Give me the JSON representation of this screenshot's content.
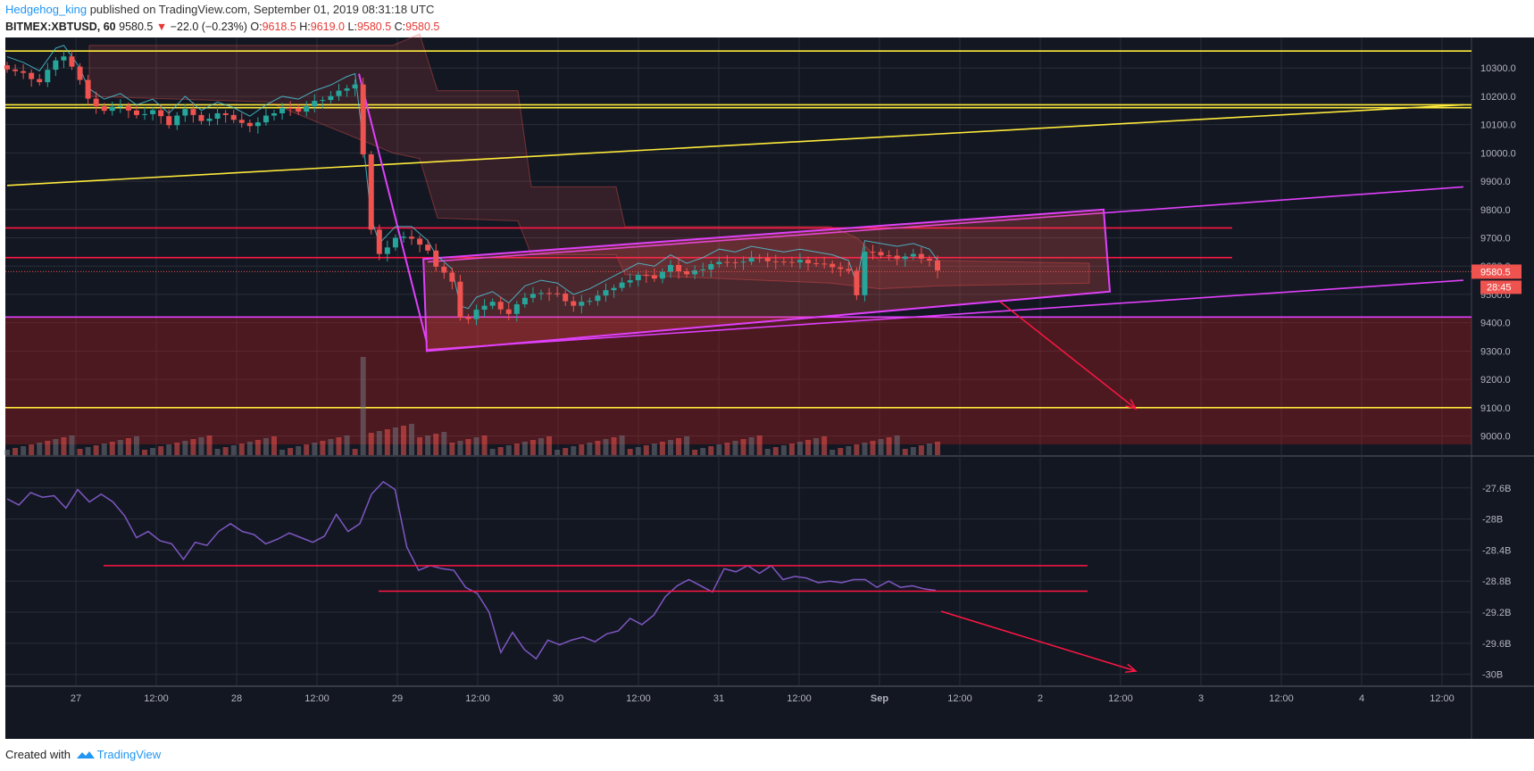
{
  "header": {
    "author": "Hedgehog_king",
    "published": "published on TradingView.com, September 01, 2019 08:31:18 UTC",
    "symbol": "BITMEX:XBTUSD, 60",
    "last": "9580.5",
    "change": "−22.0 (−0.23%)",
    "o_label": "O:",
    "o": "9618.5",
    "h_label": "H:",
    "h": "9619.0",
    "l_label": "L:",
    "l": "9580.5",
    "c_label": "C:",
    "c": "9580.5"
  },
  "footer": {
    "created": "Created with",
    "brand": "TradingView"
  },
  "colors": {
    "bg": "#131722",
    "grid": "#2a2e39",
    "up": "#26a69a",
    "down": "#ef5350",
    "yellow": "#ffeb3b",
    "magenta": "#e040fb",
    "red": "#ff1744",
    "purple": "#7e57c2",
    "price_tag": "#ef5350"
  },
  "price_tag": {
    "value": "9580.5",
    "countdown": "28:45"
  },
  "chart_data": [
    {
      "type": "candlestick",
      "panel": "price",
      "symbol": "BITMEX:XBTUSD",
      "interval": "60",
      "ylim": [
        8970,
        10420
      ],
      "y_ticks": [
        "10300.0",
        "10200.0",
        "10100.0",
        "10000.0",
        "9900.0",
        "9800.0",
        "9700.0",
        "9600.0",
        "9500.0",
        "9400.0",
        "9300.0",
        "9200.0",
        "9100.0",
        "9000.0"
      ],
      "x_ticks": [
        "27",
        "12:00",
        "28",
        "12:00",
        "29",
        "12:00",
        "30",
        "12:00",
        "31",
        "12:00",
        "Sep",
        "12:00",
        "2",
        "12:00",
        "3",
        "12:00",
        "4",
        "12:00"
      ],
      "close_path": [
        [
          0,
          10300
        ],
        [
          2,
          10280
        ],
        [
          4,
          10250
        ],
        [
          6,
          10330
        ],
        [
          7,
          10340
        ],
        [
          9,
          10260
        ],
        [
          10,
          10190
        ],
        [
          12,
          10150
        ],
        [
          14,
          10170
        ],
        [
          16,
          10130
        ],
        [
          18,
          10150
        ],
        [
          20,
          10100
        ],
        [
          22,
          10160
        ],
        [
          24,
          10110
        ],
        [
          26,
          10140
        ],
        [
          28,
          10120
        ],
        [
          30,
          10090
        ],
        [
          32,
          10130
        ],
        [
          34,
          10160
        ],
        [
          36,
          10150
        ],
        [
          38,
          10180
        ],
        [
          40,
          10200
        ],
        [
          42,
          10230
        ],
        [
          43,
          10240
        ],
        [
          44,
          10000
        ],
        [
          45,
          9730
        ],
        [
          46,
          9640
        ],
        [
          48,
          9700
        ],
        [
          50,
          9700
        ],
        [
          52,
          9650
        ],
        [
          53,
          9600
        ],
        [
          55,
          9550
        ],
        [
          56,
          9420
        ],
        [
          57,
          9410
        ],
        [
          58,
          9450
        ],
        [
          60,
          9470
        ],
        [
          62,
          9430
        ],
        [
          64,
          9490
        ],
        [
          66,
          9510
        ],
        [
          68,
          9500
        ],
        [
          70,
          9460
        ],
        [
          72,
          9480
        ],
        [
          74,
          9510
        ],
        [
          76,
          9540
        ],
        [
          78,
          9570
        ],
        [
          80,
          9560
        ],
        [
          82,
          9600
        ],
        [
          84,
          9570
        ],
        [
          86,
          9590
        ],
        [
          88,
          9620
        ],
        [
          90,
          9610
        ],
        [
          92,
          9630
        ],
        [
          94,
          9620
        ],
        [
          96,
          9610
        ],
        [
          98,
          9620
        ],
        [
          100,
          9610
        ],
        [
          102,
          9600
        ],
        [
          104,
          9580
        ],
        [
          105,
          9500
        ],
        [
          106,
          9650
        ],
        [
          108,
          9640
        ],
        [
          110,
          9630
        ],
        [
          112,
          9640
        ],
        [
          114,
          9620
        ],
        [
          115,
          9580.5
        ]
      ],
      "horizontal_levels": [
        {
          "price": 10360,
          "color": "yellow"
        },
        {
          "price": 10170,
          "color": "yellow"
        },
        {
          "price": 10160,
          "color": "yellow"
        },
        {
          "price": 9100,
          "color": "yellow"
        },
        {
          "price": 9735,
          "color": "red"
        },
        {
          "price": 9630,
          "color": "red"
        },
        {
          "price": 9420,
          "color": "magenta"
        }
      ],
      "drawn_lines": [
        {
          "color": "yellow",
          "from": [
            0,
            9885
          ],
          "to": [
            180,
            10170
          ]
        },
        {
          "color": "magenta",
          "from": [
            52,
            9615
          ],
          "to": [
            180,
            9880
          ]
        },
        {
          "color": "magenta",
          "from": [
            52,
            9305
          ],
          "to": [
            180,
            9550
          ]
        }
      ],
      "volume_spike_index": 44
    },
    {
      "type": "line",
      "panel": "indicator",
      "color": "purple",
      "y_ticks": [
        "-27.6B",
        "-28B",
        "-28.4B",
        "-28.8B",
        "-29.2B",
        "-29.6B",
        "-30B"
      ],
      "ylim": [
        -30.05,
        -27.2
      ],
      "values": [
        -27.74,
        -27.82,
        -27.66,
        -27.72,
        -27.7,
        -27.86,
        -27.62,
        -27.78,
        -27.68,
        -27.78,
        -27.96,
        -28.24,
        -28.16,
        -28.28,
        -28.32,
        -28.52,
        -28.3,
        -28.34,
        -28.16,
        -28.06,
        -28.16,
        -28.2,
        -28.32,
        -28.26,
        -28.18,
        -28.24,
        -28.3,
        -28.22,
        -27.94,
        -28.16,
        -28.06,
        -27.68,
        -27.52,
        -27.62,
        -28.36,
        -28.66,
        -28.6,
        -28.64,
        -28.66,
        -28.88,
        -28.96,
        -29.2,
        -29.72,
        -29.46,
        -29.68,
        -29.8,
        -29.56,
        -29.62,
        -29.56,
        -29.52,
        -29.58,
        -29.48,
        -29.44,
        -29.28,
        -29.36,
        -29.24,
        -29.0,
        -28.86,
        -28.78,
        -28.86,
        -28.94,
        -28.64,
        -28.68,
        -28.6,
        -28.7,
        -28.6,
        -28.78,
        -28.74,
        -28.76,
        -28.82,
        -28.8,
        -28.82,
        -28.78,
        -28.78,
        -28.88,
        -28.8,
        -28.88,
        -28.86,
        -28.9,
        -28.92
      ],
      "levels": [
        -28.6,
        -28.93
      ]
    }
  ]
}
